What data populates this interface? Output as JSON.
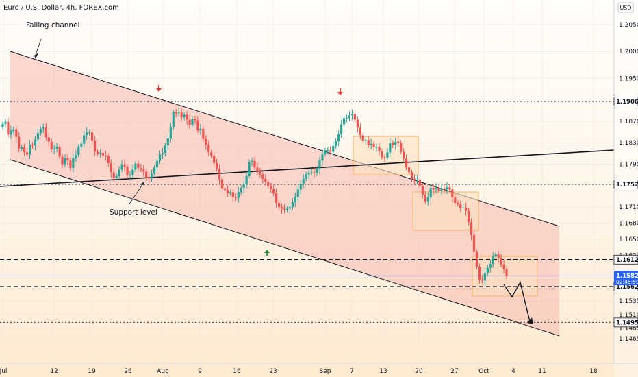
{
  "header": {
    "symbol": "Euro / U.S. Dollar, 4h, FOREX.com",
    "currency": "USD"
  },
  "annotations": {
    "channel_label": "Falling channel",
    "support_label": "Support level"
  },
  "colors": {
    "up_candle": "#26a69a",
    "down_candle": "#ef5350",
    "channel_fill": "#f8b9b0",
    "box_fill": "#fde0c0",
    "box_stroke": "#f5a54a",
    "price_line": "#2962ff",
    "arrow_down": "#e53935",
    "arrow_up": "#1e8e3e"
  },
  "chart_data": {
    "type": "candlestick",
    "instrument": "Euro / U.S. Dollar",
    "timeframe": "4h",
    "source": "FOREX.com",
    "x_ticks": [
      "Jul",
      "12",
      "19",
      "26",
      "Aug",
      "9",
      "16",
      "23",
      "Sep",
      "7",
      "13",
      "20",
      "27",
      "Oct",
      "4",
      "11",
      "18"
    ],
    "y_ticks": [
      1.205,
      1.2,
      1.195,
      1.187,
      1.183,
      1.179,
      1.171,
      1.168,
      1.165,
      1.162,
      1.158,
      1.1535,
      1.151,
      1.1485,
      1.1465
    ],
    "ylim": [
      1.1443,
      1.2113
    ],
    "price_levels": [
      {
        "value": 1.19068,
        "label": "1.19068",
        "style": "dotted"
      },
      {
        "value": 1.17523,
        "label": "1.17523",
        "style": "dotted"
      },
      {
        "value": 1.16122,
        "label": "1.16122",
        "style": "dashed"
      },
      {
        "value": 1.1562,
        "label": "1.15620",
        "style": "dashed"
      },
      {
        "value": 1.14952,
        "label": "1.14952",
        "style": "dotted"
      }
    ],
    "current_price": {
      "value": 1.15823,
      "label": "1.15823",
      "countdown": "02:45:59"
    },
    "closes": [
      1.1865,
      1.1869,
      1.1845,
      1.1852,
      1.1855,
      1.1841,
      1.1819,
      1.1822,
      1.1812,
      1.1808,
      1.1826,
      1.1825,
      1.1836,
      1.1848,
      1.1856,
      1.1859,
      1.184,
      1.1832,
      1.1818,
      1.1819,
      1.1822,
      1.1804,
      1.179,
      1.1801,
      1.1797,
      1.1783,
      1.1801,
      1.1807,
      1.1823,
      1.1828,
      1.1844,
      1.1849,
      1.1849,
      1.1834,
      1.1813,
      1.181,
      1.1811,
      1.1806,
      1.1805,
      1.1792,
      1.1775,
      1.1764,
      1.1768,
      1.178,
      1.179,
      1.1785,
      1.1769,
      1.177,
      1.178,
      1.1791,
      1.1783,
      1.178,
      1.1776,
      1.1765,
      1.1764,
      1.1772,
      1.1784,
      1.1796,
      1.1808,
      1.1811,
      1.1825,
      1.1838,
      1.1859,
      1.1887,
      1.1885,
      1.1886,
      1.1878,
      1.1882,
      1.1873,
      1.1863,
      1.1874,
      1.1872,
      1.1853,
      1.1856,
      1.1837,
      1.1826,
      1.1812,
      1.1806,
      1.1792,
      1.1781,
      1.1762,
      1.1745,
      1.1742,
      1.1736,
      1.1738,
      1.1728,
      1.1727,
      1.1738,
      1.1746,
      1.1752,
      1.1768,
      1.1794,
      1.1796,
      1.1784,
      1.1778,
      1.1771,
      1.1763,
      1.1757,
      1.1749,
      1.1744,
      1.1736,
      1.1718,
      1.171,
      1.1707,
      1.1705,
      1.1707,
      1.171,
      1.1719,
      1.1728,
      1.1743,
      1.1753,
      1.1763,
      1.1771,
      1.1774,
      1.1775,
      1.1774,
      1.1781,
      1.1797,
      1.1809,
      1.1816,
      1.1816,
      1.1813,
      1.1824,
      1.1833,
      1.1846,
      1.1864,
      1.1876,
      1.1876,
      1.1881,
      1.1883,
      1.1873,
      1.1858,
      1.1844,
      1.1834,
      1.1835,
      1.1826,
      1.1828,
      1.1822,
      1.1822,
      1.1814,
      1.1803,
      1.1802,
      1.1812,
      1.1829,
      1.1826,
      1.1832,
      1.183,
      1.1813,
      1.18,
      1.1784,
      1.1775,
      1.1763,
      1.176,
      1.1761,
      1.1749,
      1.1733,
      1.1721,
      1.1728,
      1.1746,
      1.1743,
      1.1746,
      1.1741,
      1.1745,
      1.1743,
      1.1747,
      1.1743,
      1.1728,
      1.1718,
      1.1716,
      1.1708,
      1.1709,
      1.1703,
      1.1682,
      1.1658,
      1.1627,
      1.1599,
      1.1575,
      1.1573,
      1.1587,
      1.1597,
      1.1604,
      1.1618,
      1.1622,
      1.1615,
      1.1603,
      1.1595,
      1.1582
    ]
  }
}
